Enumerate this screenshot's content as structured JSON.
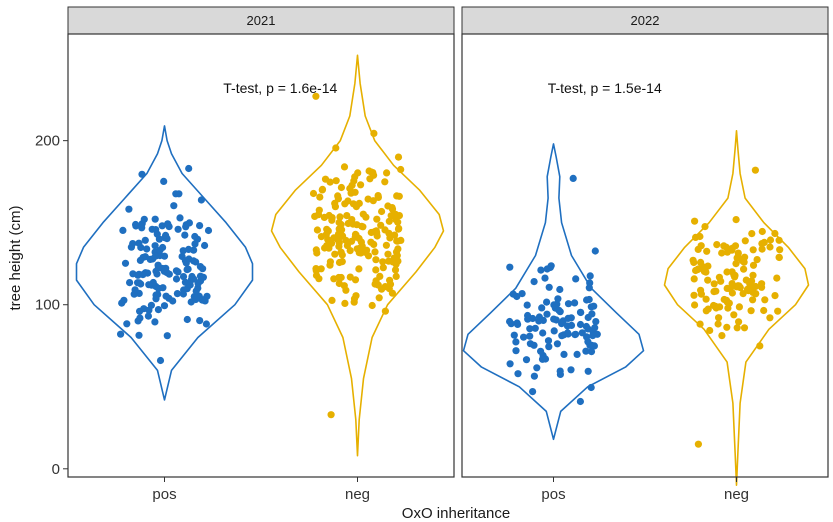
{
  "chart_data": {
    "type": "scatter",
    "subtype": "faceted violin with jittered points",
    "xlabel": "OxO inheritance",
    "ylabel": "tree height (cm)",
    "ylim": [
      -5,
      265
    ],
    "yticks": [
      0,
      100,
      200
    ],
    "categories": [
      "pos",
      "neg"
    ],
    "grid": false,
    "colors": {
      "pos": "#1f6fc0",
      "neg": "#e6b000"
    },
    "facets": [
      {
        "label": "2021",
        "annotation": "T-test, p = 1.6e-14",
        "series": [
          {
            "group": "pos",
            "n": 150,
            "center": 122,
            "sd": 26,
            "min": 66,
            "max": 183,
            "violin": [
              [
                42,
                0.0
              ],
              [
                60,
                0.08
              ],
              [
                80,
                0.38
              ],
              [
                100,
                0.8
              ],
              [
                115,
                1.0
              ],
              [
                125,
                1.0
              ],
              [
                135,
                0.92
              ],
              [
                150,
                0.7
              ],
              [
                165,
                0.45
              ],
              [
                180,
                0.2
              ],
              [
                192,
                0.08
              ],
              [
                200,
                0.03
              ],
              [
                209,
                0.0
              ]
            ]
          },
          {
            "group": "neg",
            "n": 190,
            "center": 145,
            "sd": 33,
            "min": 33,
            "max": 227,
            "violin": [
              [
                8,
                0.0
              ],
              [
                30,
                0.02
              ],
              [
                55,
                0.07
              ],
              [
                80,
                0.17
              ],
              [
                100,
                0.35
              ],
              [
                120,
                0.68
              ],
              [
                135,
                0.9
              ],
              [
                145,
                1.0
              ],
              [
                155,
                0.95
              ],
              [
                170,
                0.72
              ],
              [
                185,
                0.42
              ],
              [
                200,
                0.2
              ],
              [
                215,
                0.09
              ],
              [
                235,
                0.03
              ],
              [
                252,
                0.0
              ]
            ]
          }
        ]
      },
      {
        "label": "2022",
        "annotation": "T-test, p = 1.5e-14",
        "series": [
          {
            "group": "pos",
            "n": 110,
            "center": 87,
            "sd": 22,
            "min": 41,
            "max": 177,
            "violin": [
              [
                18,
                0.0
              ],
              [
                35,
                0.08
              ],
              [
                50,
                0.38
              ],
              [
                62,
                0.8
              ],
              [
                72,
                1.0
              ],
              [
                82,
                0.95
              ],
              [
                95,
                0.7
              ],
              [
                110,
                0.42
              ],
              [
                130,
                0.2
              ],
              [
                150,
                0.09
              ],
              [
                165,
                0.06
              ],
              [
                178,
                0.07
              ],
              [
                190,
                0.03
              ],
              [
                198,
                0.0
              ]
            ]
          },
          {
            "group": "neg",
            "n": 125,
            "center": 115,
            "sd": 22,
            "min": 15,
            "max": 182,
            "violin": [
              [
                -10,
                0.0
              ],
              [
                10,
                0.02
              ],
              [
                40,
                0.05
              ],
              [
                65,
                0.13
              ],
              [
                85,
                0.45
              ],
              [
                100,
                0.82
              ],
              [
                112,
                1.0
              ],
              [
                122,
                0.95
              ],
              [
                135,
                0.72
              ],
              [
                150,
                0.38
              ],
              [
                165,
                0.12
              ],
              [
                180,
                0.05
              ],
              [
                195,
                0.02
              ],
              [
                206,
                0.0
              ]
            ]
          }
        ]
      }
    ]
  }
}
